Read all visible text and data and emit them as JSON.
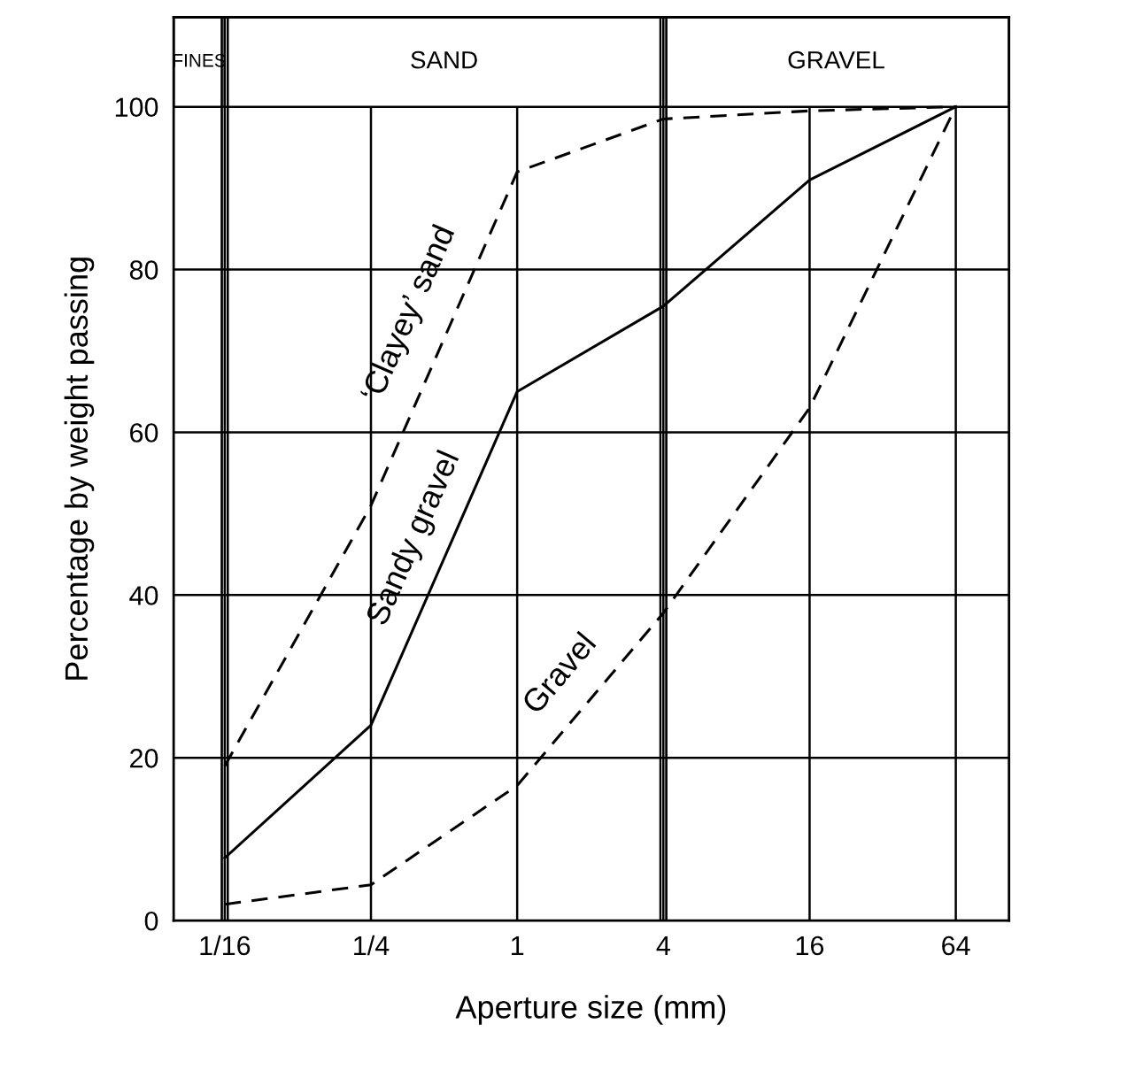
{
  "chart_data": {
    "type": "line",
    "xlabel": "Aperture size (mm)",
    "ylabel": "Percentage by weight passing",
    "x": [
      0.0625,
      0.25,
      1,
      4,
      16,
      64
    ],
    "series": [
      {
        "name": "‘Clayey’ sand",
        "color": "#000000",
        "line_style": "dashed",
        "values": [
          19,
          51,
          92,
          98.5,
          99.5,
          100
        ]
      },
      {
        "name": "Sandy gravel",
        "color": "#000000",
        "line_style": "solid",
        "values": [
          7.7,
          24,
          65,
          75.5,
          91,
          100
        ]
      },
      {
        "name": "Gravel",
        "color": "#000000",
        "line_style": "dashed",
        "values": [
          2,
          4.4,
          16.6,
          37.8,
          63,
          100
        ]
      }
    ],
    "log": "x",
    "xlim": [
      0.0385,
      106
    ],
    "ylim": [
      0,
      111
    ],
    "xticks": [
      {
        "value": 0.0625,
        "label": "1/16"
      },
      {
        "value": 0.25,
        "label": "1/4"
      },
      1,
      4,
      16,
      64
    ],
    "yticks": [
      0,
      20,
      40,
      60,
      80,
      100
    ],
    "bands": [
      {
        "axis": "x",
        "from": 0.0385,
        "to": 0.0625,
        "label": "FINES"
      },
      {
        "axis": "x",
        "from": 0.0625,
        "to": 4,
        "label": "SAND"
      },
      {
        "axis": "x",
        "from": 4,
        "to": 106,
        "label": "GRAVEL"
      }
    ],
    "grid": true,
    "marker": "none",
    "legend": false
  }
}
